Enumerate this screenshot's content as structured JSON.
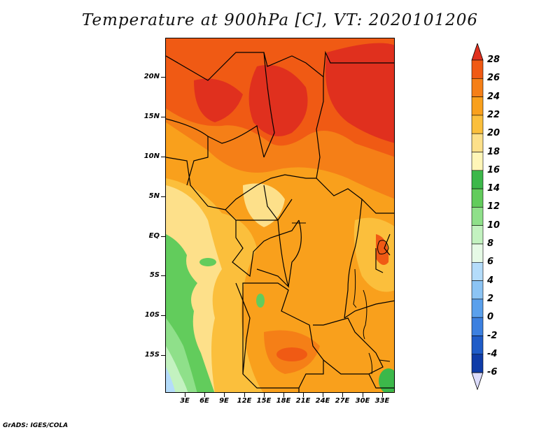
{
  "title": "Temperature at 900hPa [C], VT: 2020101206",
  "credit": "GrADS: IGES/COLA",
  "map": {
    "lat_labels": [
      "20N",
      "15N",
      "10N",
      "5N",
      "EQ",
      "5S",
      "10S",
      "15S"
    ],
    "lon_labels": [
      "3E",
      "6E",
      "9E",
      "12E",
      "15E",
      "18E",
      "21E",
      "24E",
      "27E",
      "30E",
      "33E"
    ]
  },
  "colorbar": {
    "labels": [
      "28",
      "26",
      "24",
      "22",
      "20",
      "18",
      "16",
      "14",
      "12",
      "10",
      "8",
      "6",
      "4",
      "2",
      "0",
      "-2",
      "-4",
      "-6"
    ],
    "colors": [
      "#e0301e",
      "#f05a14",
      "#f57f17",
      "#f9a01c",
      "#fbbf3c",
      "#fde08a",
      "#fff6b8",
      "#3cb84a",
      "#62cc5c",
      "#8fe08a",
      "#c3f2c0",
      "#e6fae6",
      "#b4dcfa",
      "#8cc4f4",
      "#5aa0ec",
      "#3c80e0",
      "#1f5cc8",
      "#0f3ca8",
      "#0a1a78"
    ],
    "over_color": "#e0301e",
    "under_color": "#dcdcfc"
  }
}
